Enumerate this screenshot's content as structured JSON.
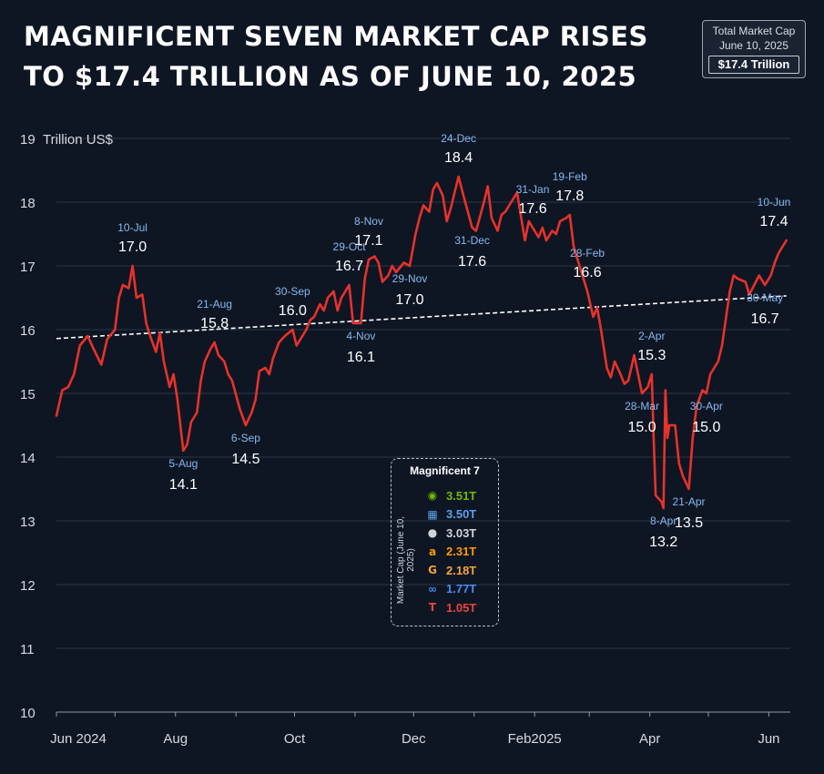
{
  "title": {
    "line1": "MAGNIFICENT SEVEN MARKET CAP RISES",
    "line2": "TO $17.4 TRILLION AS OF JUNE 10, 2025"
  },
  "cap_box": {
    "line1": "Total Market Cap",
    "line2": "June 10, 2025",
    "value": "$17.4 Trillion"
  },
  "legend": {
    "title": "Magnificent 7",
    "side_label": "Market Cap (June 10, 2025)",
    "items": [
      {
        "icon": "nvidia-icon",
        "value": "3.51T",
        "color": "#76b900"
      },
      {
        "icon": "microsoft-icon",
        "value": "3.50T",
        "color": "#5aa0e8"
      },
      {
        "icon": "apple-icon",
        "value": "3.03T",
        "color": "#d0d4da"
      },
      {
        "icon": "amazon-icon",
        "value": "2.31T",
        "color": "#ff9900"
      },
      {
        "icon": "google-icon",
        "value": "2.18T",
        "color": "#f0a43a"
      },
      {
        "icon": "meta-icon",
        "value": "1.77T",
        "color": "#4a8cf0"
      },
      {
        "icon": "tesla-icon",
        "value": "1.05T",
        "color": "#e8453c"
      }
    ]
  },
  "chart_data": {
    "type": "line",
    "ylabel": "Trillion US$",
    "ylim": [
      10,
      19
    ],
    "yticks": [
      10,
      11,
      12,
      13,
      14,
      15,
      16,
      17,
      18,
      19
    ],
    "xticks": [
      {
        "label": "Jun 2024",
        "date": "2024-06-01"
      },
      {
        "label": "Aug",
        "date": "2024-08-01"
      },
      {
        "label": "Oct",
        "date": "2024-10-01"
      },
      {
        "label": "Dec",
        "date": "2024-12-01"
      },
      {
        "label": "Feb2025",
        "date": "2025-02-01"
      },
      {
        "label": "Apr",
        "date": "2025-04-01"
      },
      {
        "label": "Jun",
        "date": "2025-06-01"
      }
    ],
    "xlim": [
      "2024-06-01",
      "2025-06-12"
    ],
    "grid": true,
    "series": [
      {
        "color": "#e8322a",
        "points": [
          [
            "2024-06-01",
            14.65
          ],
          [
            "2024-06-04",
            15.05
          ],
          [
            "2024-06-07",
            15.1
          ],
          [
            "2024-06-10",
            15.3
          ],
          [
            "2024-06-13",
            15.75
          ],
          [
            "2024-06-17",
            15.9
          ],
          [
            "2024-06-20",
            15.7
          ],
          [
            "2024-06-24",
            15.45
          ],
          [
            "2024-06-27",
            15.85
          ],
          [
            "2024-07-01",
            16.0
          ],
          [
            "2024-07-03",
            16.5
          ],
          [
            "2024-07-05",
            16.7
          ],
          [
            "2024-07-08",
            16.65
          ],
          [
            "2024-07-10",
            17.0
          ],
          [
            "2024-07-12",
            16.5
          ],
          [
            "2024-07-15",
            16.55
          ],
          [
            "2024-07-17",
            16.1
          ],
          [
            "2024-07-19",
            15.9
          ],
          [
            "2024-07-22",
            15.65
          ],
          [
            "2024-07-24",
            15.95
          ],
          [
            "2024-07-26",
            15.5
          ],
          [
            "2024-07-29",
            15.1
          ],
          [
            "2024-07-31",
            15.3
          ],
          [
            "2024-08-02",
            14.9
          ],
          [
            "2024-08-05",
            14.1
          ],
          [
            "2024-08-07",
            14.2
          ],
          [
            "2024-08-09",
            14.55
          ],
          [
            "2024-08-12",
            14.7
          ],
          [
            "2024-08-14",
            15.2
          ],
          [
            "2024-08-16",
            15.5
          ],
          [
            "2024-08-19",
            15.7
          ],
          [
            "2024-08-21",
            15.8
          ],
          [
            "2024-08-23",
            15.6
          ],
          [
            "2024-08-26",
            15.5
          ],
          [
            "2024-08-28",
            15.3
          ],
          [
            "2024-08-30",
            15.2
          ],
          [
            "2024-09-03",
            14.75
          ],
          [
            "2024-09-06",
            14.5
          ],
          [
            "2024-09-09",
            14.7
          ],
          [
            "2024-09-11",
            14.9
          ],
          [
            "2024-09-13",
            15.35
          ],
          [
            "2024-09-16",
            15.4
          ],
          [
            "2024-09-18",
            15.3
          ],
          [
            "2024-09-20",
            15.55
          ],
          [
            "2024-09-23",
            15.8
          ],
          [
            "2024-09-26",
            15.9
          ],
          [
            "2024-09-30",
            16.0
          ],
          [
            "2024-10-02",
            15.75
          ],
          [
            "2024-10-04",
            15.85
          ],
          [
            "2024-10-07",
            16.0
          ],
          [
            "2024-10-09",
            16.15
          ],
          [
            "2024-10-11",
            16.2
          ],
          [
            "2024-10-14",
            16.4
          ],
          [
            "2024-10-16",
            16.3
          ],
          [
            "2024-10-18",
            16.5
          ],
          [
            "2024-10-21",
            16.6
          ],
          [
            "2024-10-23",
            16.3
          ],
          [
            "2024-10-25",
            16.5
          ],
          [
            "2024-10-29",
            16.7
          ],
          [
            "2024-10-31",
            16.1
          ],
          [
            "2024-11-04",
            16.1
          ],
          [
            "2024-11-06",
            16.8
          ],
          [
            "2024-11-08",
            17.1
          ],
          [
            "2024-11-11",
            17.15
          ],
          [
            "2024-11-13",
            17.05
          ],
          [
            "2024-11-15",
            16.75
          ],
          [
            "2024-11-18",
            16.85
          ],
          [
            "2024-11-20",
            17.0
          ],
          [
            "2024-11-22",
            16.9
          ],
          [
            "2024-11-26",
            17.05
          ],
          [
            "2024-11-29",
            17.0
          ],
          [
            "2024-12-02",
            17.5
          ],
          [
            "2024-12-04",
            17.75
          ],
          [
            "2024-12-06",
            17.95
          ],
          [
            "2024-12-09",
            17.85
          ],
          [
            "2024-12-11",
            18.2
          ],
          [
            "2024-12-13",
            18.3
          ],
          [
            "2024-12-16",
            18.1
          ],
          [
            "2024-12-18",
            17.7
          ],
          [
            "2024-12-20",
            17.9
          ],
          [
            "2024-12-24",
            18.4
          ],
          [
            "2024-12-27",
            18.05
          ],
          [
            "2024-12-31",
            17.6
          ],
          [
            "2025-01-02",
            17.55
          ],
          [
            "2025-01-06",
            18.0
          ],
          [
            "2025-01-08",
            18.25
          ],
          [
            "2025-01-10",
            17.75
          ],
          [
            "2025-01-13",
            17.55
          ],
          [
            "2025-01-15",
            17.8
          ],
          [
            "2025-01-17",
            17.85
          ],
          [
            "2025-01-21",
            18.05
          ],
          [
            "2025-01-23",
            18.15
          ],
          [
            "2025-01-27",
            17.4
          ],
          [
            "2025-01-29",
            17.7
          ],
          [
            "2025-01-31",
            17.6
          ],
          [
            "2025-02-03",
            17.45
          ],
          [
            "2025-02-05",
            17.6
          ],
          [
            "2025-02-07",
            17.4
          ],
          [
            "2025-02-10",
            17.55
          ],
          [
            "2025-02-12",
            17.5
          ],
          [
            "2025-02-14",
            17.7
          ],
          [
            "2025-02-17",
            17.75
          ],
          [
            "2025-02-19",
            17.8
          ],
          [
            "2025-02-21",
            17.3
          ],
          [
            "2025-02-24",
            17.0
          ],
          [
            "2025-02-26",
            16.8
          ],
          [
            "2025-02-28",
            16.6
          ],
          [
            "2025-03-03",
            16.2
          ],
          [
            "2025-03-05",
            16.35
          ],
          [
            "2025-03-07",
            16.0
          ],
          [
            "2025-03-10",
            15.4
          ],
          [
            "2025-03-12",
            15.25
          ],
          [
            "2025-03-14",
            15.5
          ],
          [
            "2025-03-17",
            15.3
          ],
          [
            "2025-03-19",
            15.15
          ],
          [
            "2025-03-21",
            15.2
          ],
          [
            "2025-03-24",
            15.6
          ],
          [
            "2025-03-26",
            15.3
          ],
          [
            "2025-03-28",
            15.0
          ],
          [
            "2025-03-31",
            15.1
          ],
          [
            "2025-04-02",
            15.3
          ],
          [
            "2025-04-03",
            14.3
          ],
          [
            "2025-04-04",
            13.4
          ],
          [
            "2025-04-07",
            13.3
          ],
          [
            "2025-04-08",
            13.2
          ],
          [
            "2025-04-09",
            15.05
          ],
          [
            "2025-04-10",
            14.3
          ],
          [
            "2025-04-11",
            14.5
          ],
          [
            "2025-04-14",
            14.5
          ],
          [
            "2025-04-16",
            13.9
          ],
          [
            "2025-04-18",
            13.7
          ],
          [
            "2025-04-21",
            13.5
          ],
          [
            "2025-04-23",
            14.3
          ],
          [
            "2025-04-25",
            14.8
          ],
          [
            "2025-04-28",
            15.05
          ],
          [
            "2025-04-30",
            15.0
          ],
          [
            "2025-05-02",
            15.3
          ],
          [
            "2025-05-06",
            15.5
          ],
          [
            "2025-05-08",
            15.75
          ],
          [
            "2025-05-12",
            16.6
          ],
          [
            "2025-05-14",
            16.85
          ],
          [
            "2025-05-16",
            16.8
          ],
          [
            "2025-05-20",
            16.75
          ],
          [
            "2025-05-22",
            16.55
          ],
          [
            "2025-05-27",
            16.85
          ],
          [
            "2025-05-30",
            16.7
          ],
          [
            "2025-06-02",
            16.85
          ],
          [
            "2025-06-04",
            17.05
          ],
          [
            "2025-06-06",
            17.2
          ],
          [
            "2025-06-10",
            17.4
          ]
        ]
      }
    ],
    "trendline": {
      "color": "#ffffff",
      "style": "dashed",
      "start": [
        "2024-06-01",
        15.86
      ],
      "end": [
        "2025-06-10",
        16.53
      ]
    },
    "annotations": [
      {
        "date": "2024-07-10",
        "label": "10-Jul",
        "value": "17.0",
        "placement": "above"
      },
      {
        "date": "2024-08-05",
        "label": "5-Aug",
        "value": "14.1",
        "placement": "below"
      },
      {
        "date": "2024-08-21",
        "label": "21-Aug",
        "value": "15.8",
        "placement": "above"
      },
      {
        "date": "2024-09-06",
        "label": "6-Sep",
        "value": "14.5",
        "placement": "below"
      },
      {
        "date": "2024-09-30",
        "label": "30-Sep",
        "value": "16.0",
        "placement": "above"
      },
      {
        "date": "2024-10-29",
        "label": "29-Oct",
        "value": "16.7",
        "placement": "above"
      },
      {
        "date": "2024-11-04",
        "label": "4-Nov",
        "value": "16.1",
        "placement": "below"
      },
      {
        "date": "2024-11-08",
        "label": "8-Nov",
        "value": "17.1",
        "placement": "above"
      },
      {
        "date": "2024-11-29",
        "label": "29-Nov",
        "value": "17.0",
        "placement": "below"
      },
      {
        "date": "2024-12-24",
        "label": "24-Dec",
        "value": "18.4",
        "placement": "above"
      },
      {
        "date": "2024-12-31",
        "label": "31-Dec",
        "value": "17.6",
        "placement": "below"
      },
      {
        "date": "2025-01-31",
        "label": "31-Jan",
        "value": "17.6",
        "placement": "above"
      },
      {
        "date": "2025-02-19",
        "label": "19-Feb",
        "value": "17.8",
        "placement": "above"
      },
      {
        "date": "2025-02-28",
        "label": "28-Feb",
        "value": "16.6",
        "placement": "above"
      },
      {
        "date": "2025-03-28",
        "label": "28-Mar",
        "value": "15.0",
        "placement": "below"
      },
      {
        "date": "2025-04-02",
        "label": "2-Apr",
        "value": "15.3",
        "placement": "above"
      },
      {
        "date": "2025-04-08",
        "label": "8-Apr",
        "value": "13.2",
        "placement": "below"
      },
      {
        "date": "2025-04-21",
        "label": "21-Apr",
        "value": "13.5",
        "placement": "below"
      },
      {
        "date": "2025-04-30",
        "label": "30-Apr",
        "value": "15.0",
        "placement": "below"
      },
      {
        "date": "2025-05-30",
        "label": "30-May",
        "value": "16.7",
        "placement": "below"
      },
      {
        "date": "2025-06-10",
        "label": "10-Jun",
        "value": "17.4",
        "placement": "above"
      }
    ]
  }
}
